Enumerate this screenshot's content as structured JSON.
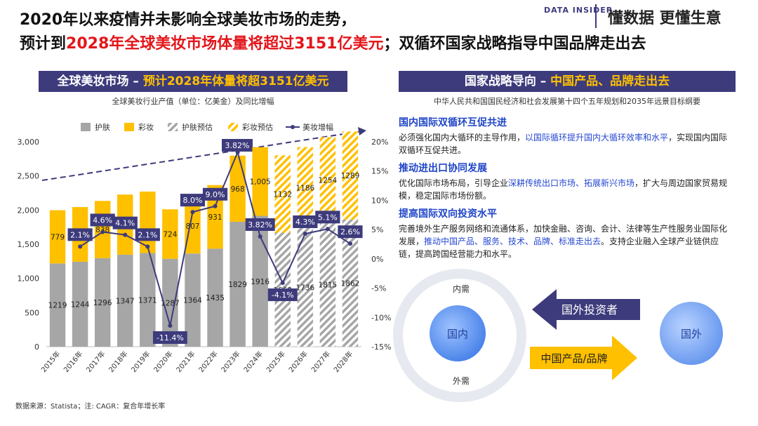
{
  "header": {
    "title_line1": "2020年以来疫情并未影响全球美妆市场的走势，",
    "title_line2": [
      {
        "text": "预计到",
        "highlight": false
      },
      {
        "text": "2028年全球美妆市场体量将超过3151亿美元",
        "highlight": true
      },
      {
        "text": "；双循环国家战略指导中国品牌走出去",
        "highlight": false
      }
    ],
    "logo": "DATA INSIDER",
    "slogan": "懂数据 更懂生意"
  },
  "left_panel": {
    "banner": [
      {
        "text": "全球美妆市场 – ",
        "highlight": false
      },
      {
        "text": "预计2028年体量将超3151亿美元",
        "highlight": true
      }
    ],
    "cagr_label": "3.82%"
  },
  "chart_data": {
    "type": "bar",
    "subtitle": "全球美妆行业产值（单位：亿美金）及同比增幅",
    "categories": [
      "2015年",
      "2016年",
      "2017年",
      "2018年",
      "2019年",
      "2020年",
      "2021年",
      "2022年",
      "2023年",
      "2024年",
      "2025年",
      "2026年",
      "2027年",
      "2028年"
    ],
    "series": [
      {
        "name": "护肤",
        "color": "#a6a6a6",
        "hatch": false,
        "values": [
          1219,
          1244,
          1296,
          1347,
          1371,
          1287,
          1364,
          1435,
          1829,
          1916,
          null,
          null,
          null,
          null
        ]
      },
      {
        "name": "彩妆",
        "color": "#ffc000",
        "hatch": false,
        "values": [
          779,
          800,
          838,
          880,
          900,
          724,
          807,
          931,
          968,
          1005,
          null,
          null,
          null,
          null
        ],
        "value_labels": [
          "779",
          null,
          "838",
          null,
          null,
          "724",
          "807",
          "931",
          "968",
          "1,005",
          null,
          null,
          null,
          null
        ]
      },
      {
        "name": "护肤预估",
        "color": "#a6a6a6",
        "hatch": true,
        "values": [
          null,
          null,
          null,
          null,
          null,
          null,
          null,
          null,
          null,
          null,
          1669,
          1736,
          1815,
          1862
        ]
      },
      {
        "name": "彩妆预估",
        "color": "#ffc000",
        "hatch": true,
        "values": [
          null,
          null,
          null,
          null,
          null,
          null,
          null,
          null,
          null,
          null,
          1132,
          1186,
          1254,
          1289
        ]
      },
      {
        "name": "美妆增幅",
        "color": "#3d3b7c",
        "type": "line",
        "axis": "y2",
        "values": [
          null,
          2.1,
          4.6,
          4.1,
          2.1,
          -11.4,
          8.0,
          9.0,
          18.2,
          3.82,
          -4.1,
          4.3,
          5.1,
          2.6
        ],
        "value_labels": [
          null,
          "2.1%",
          "4.6%",
          "4.1%",
          "2.1%",
          "-11.4%",
          "8.0%",
          "9.0%",
          null,
          "3.82%",
          "-4.1%",
          "4.3%",
          "5.1%",
          "2.6%"
        ]
      }
    ],
    "ylim": [
      0,
      3000
    ],
    "yticks": [
      0,
      {
        "value": 500,
        "label": "500"
      },
      {
        "value": 1000,
        "label": "1,000"
      },
      {
        "value": 1500,
        "label": "1,500"
      },
      {
        "value": 2000,
        "label": "2,000"
      },
      {
        "value": 2500,
        "label": "2,500"
      },
      {
        "value": 3000,
        "label": "3,000"
      }
    ],
    "y2lim": [
      -15,
      20
    ],
    "y2ticks": [
      {
        "value": -15,
        "label": "-15%"
      },
      {
        "value": -10,
        "label": "-10%"
      },
      {
        "value": -5,
        "label": "-5%"
      },
      {
        "value": 0,
        "label": "0%"
      },
      {
        "value": 5,
        "label": "5%"
      },
      {
        "value": 10,
        "label": "10%"
      },
      {
        "value": 15,
        "label": "15%"
      },
      {
        "value": 20,
        "label": "20%"
      }
    ],
    "grid": false,
    "legend": "top"
  },
  "right_panel": {
    "banner": [
      {
        "text": "国家战略导向 – ",
        "highlight": false
      },
      {
        "text": "中国产品、品牌走出去",
        "highlight": true
      }
    ],
    "subtitle": "中华人民共和国国民经济和社会发展第十四个五年规划和2035年远景目标纲要",
    "sections": [
      {
        "heading": "国内国际双循环互促共进",
        "body": [
          {
            "text": "必须强化国内大循环的主导作用，",
            "highlight": false
          },
          {
            "text": "以国际循环提升国内大循环效率和水平",
            "highlight": true
          },
          {
            "text": "，实现国内国际双循环互促共进。",
            "highlight": false
          }
        ]
      },
      {
        "heading": "推动进出口协同发展",
        "body": [
          {
            "text": "优化国际市场布局，引导企业",
            "highlight": false
          },
          {
            "text": "深耕传统出口市场、拓展新兴市场",
            "highlight": true
          },
          {
            "text": "，扩大与周边国家贸易规模，稳定国际市场份额。",
            "highlight": false
          }
        ]
      },
      {
        "heading": "提高国际双向投资水平",
        "body": [
          {
            "text": "完善境外生产服务网络和流通体系，加快金融、咨询、会计、法律等生产性服务业国际化发展，",
            "highlight": false
          },
          {
            "text": "推动中国产品、服务、技术、品牌、标准走出去",
            "highlight": true
          },
          {
            "text": "。支持企业融入全球产业链供应链，提高跨国经营能力和水平。",
            "highlight": false
          }
        ]
      }
    ]
  },
  "diagram": {
    "domestic": "国内",
    "foreign": "国外",
    "inner_demand": "内需",
    "outer_demand": "外需",
    "inbound_arrow": "国外投资者",
    "outbound_arrow": "中国产品/品牌"
  },
  "footer": {
    "source": "数据来源：Statista；注: CAGR：复合年增长率"
  }
}
